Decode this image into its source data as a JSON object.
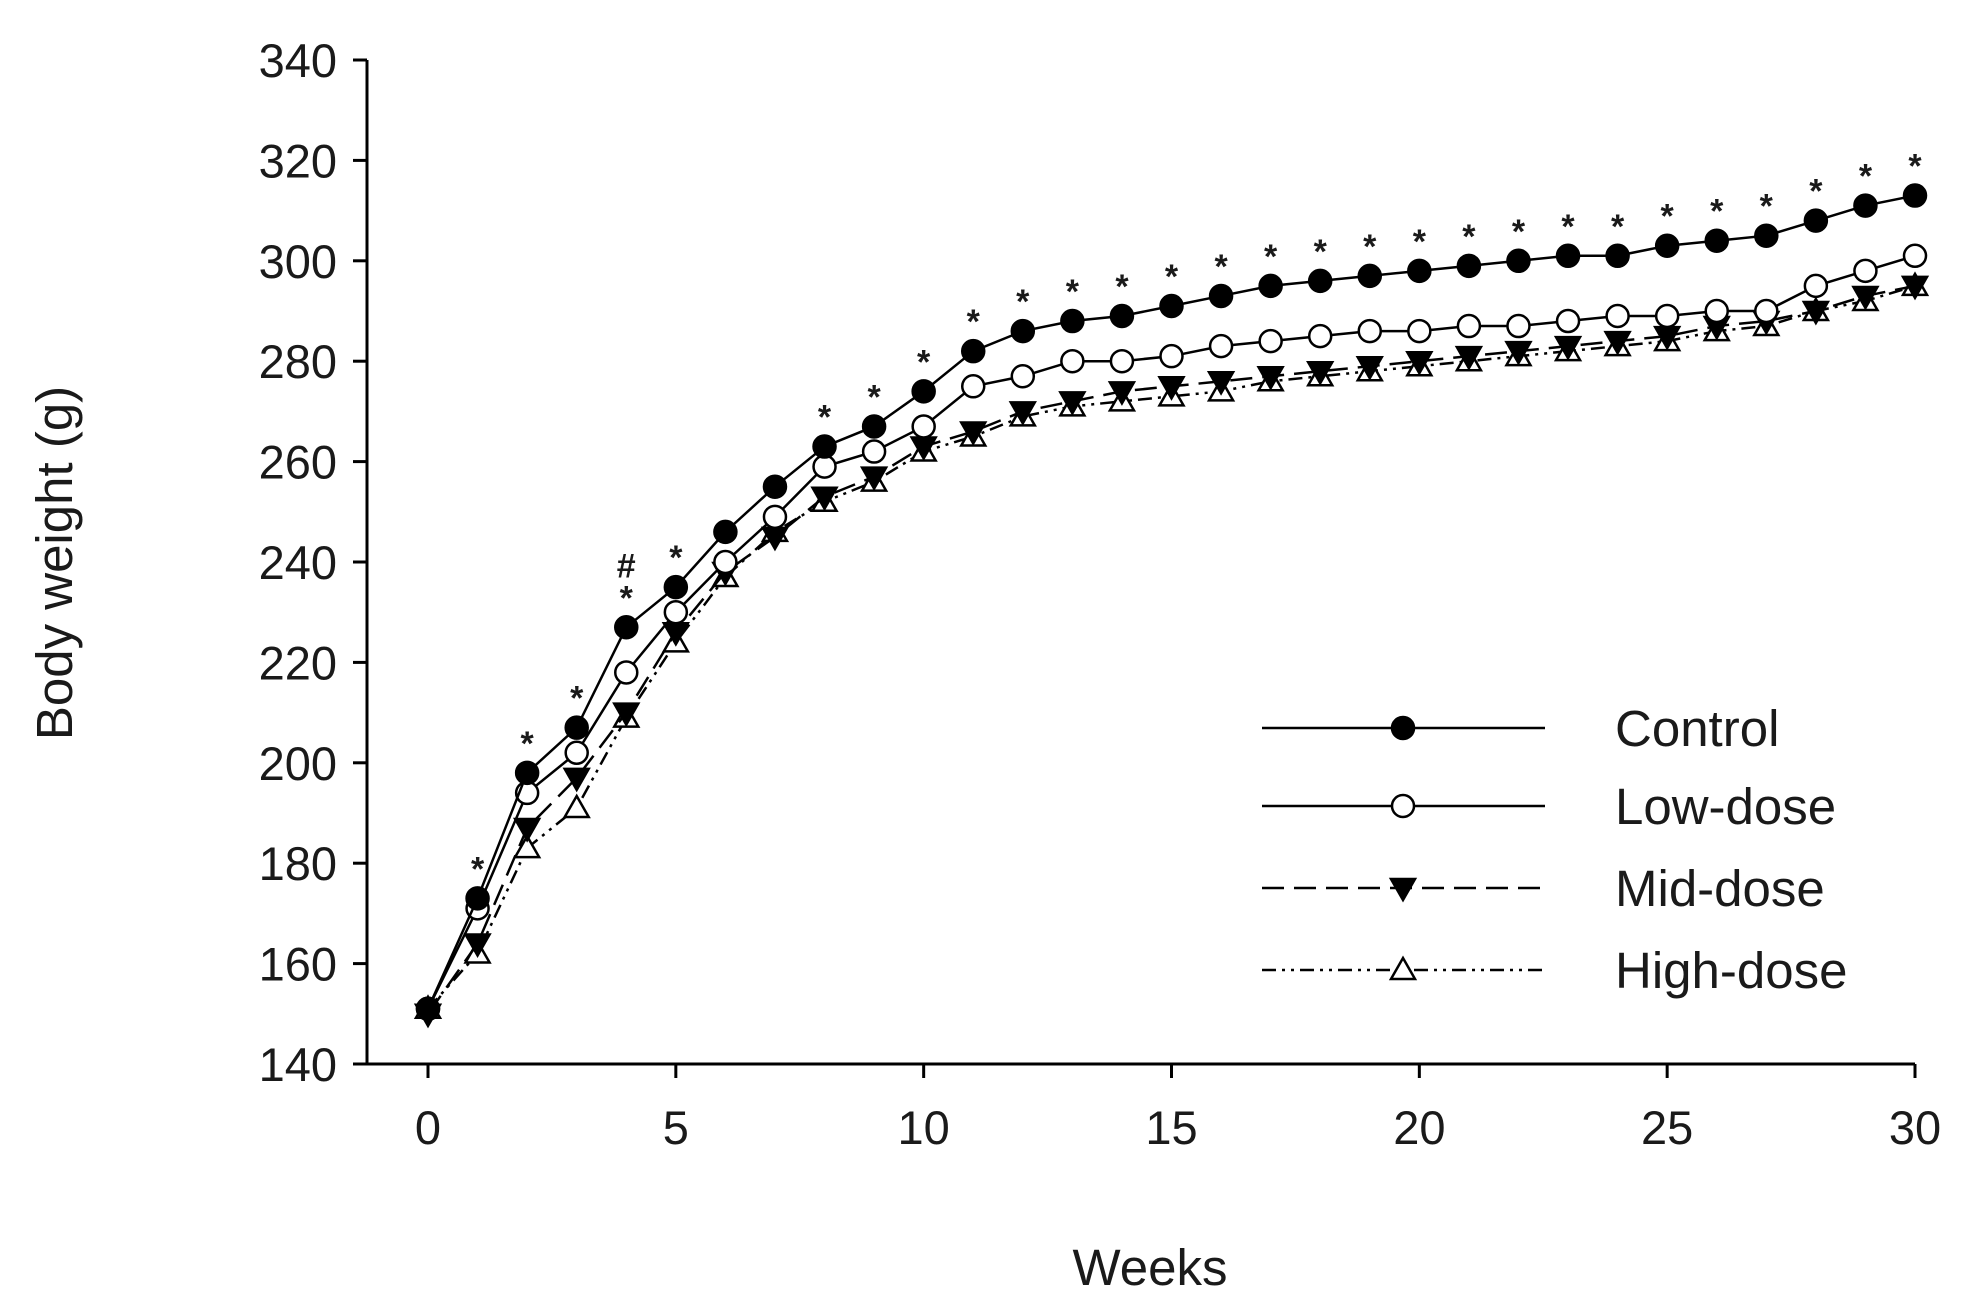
{
  "chart_data": {
    "type": "line",
    "title": "",
    "xlabel": "Weeks",
    "ylabel": "Body weight (g)",
    "xlim": [
      0,
      30
    ],
    "ylim": [
      140,
      340
    ],
    "xticks": [
      0,
      5,
      10,
      15,
      20,
      25,
      30
    ],
    "yticks": [
      140,
      160,
      180,
      200,
      220,
      240,
      260,
      280,
      300,
      320,
      340
    ],
    "grid": false,
    "legend_position": "lower-right",
    "x": [
      0,
      1,
      2,
      3,
      4,
      5,
      6,
      7,
      8,
      9,
      10,
      11,
      12,
      13,
      14,
      15,
      16,
      17,
      18,
      19,
      20,
      21,
      22,
      23,
      24,
      25,
      26,
      27,
      28,
      29,
      30
    ],
    "series": [
      {
        "name": "Control",
        "marker": "filled-circle",
        "line_style": "solid",
        "values": [
          151,
          173,
          198,
          207,
          227,
          235,
          246,
          255,
          263,
          267,
          274,
          282,
          286,
          288,
          289,
          291,
          293,
          295,
          296,
          297,
          298,
          299,
          300,
          301,
          301,
          303,
          304,
          305,
          308,
          311,
          313
        ]
      },
      {
        "name": "Low-dose",
        "marker": "open-circle",
        "line_style": "solid",
        "values": [
          151,
          171,
          194,
          202,
          218,
          230,
          240,
          249,
          259,
          262,
          267,
          275,
          277,
          280,
          280,
          281,
          283,
          284,
          285,
          286,
          286,
          287,
          287,
          288,
          289,
          289,
          290,
          290,
          295,
          298,
          301
        ]
      },
      {
        "name": "Mid-dose",
        "marker": "filled-triangle-down",
        "line_style": "dashed",
        "values": [
          150,
          164,
          187,
          197,
          210,
          226,
          238,
          245,
          253,
          257,
          263,
          266,
          270,
          272,
          274,
          275,
          276,
          277,
          278,
          279,
          280,
          281,
          282,
          283,
          284,
          285,
          287,
          288,
          290,
          293,
          295
        ]
      },
      {
        "name": "High-dose",
        "marker": "open-triangle-up",
        "line_style": "dash-dot-dot",
        "values": [
          151,
          162,
          183,
          191,
          209,
          224,
          237,
          246,
          252,
          256,
          262,
          265,
          269,
          271,
          272,
          273,
          274,
          276,
          277,
          278,
          279,
          280,
          281,
          282,
          283,
          284,
          286,
          287,
          290,
          292,
          295
        ]
      }
    ],
    "annotations": [
      {
        "x": 1,
        "text": "*"
      },
      {
        "x": 2,
        "text": "*"
      },
      {
        "x": 3,
        "text": "*"
      },
      {
        "x": 4,
        "text": "*"
      },
      {
        "x": 4,
        "text": "#",
        "stack": 1
      },
      {
        "x": 5,
        "text": "*"
      },
      {
        "x": 8,
        "text": "*"
      },
      {
        "x": 9,
        "text": "*"
      },
      {
        "x": 10,
        "text": "*"
      },
      {
        "x": 11,
        "text": "*"
      },
      {
        "x": 12,
        "text": "*"
      },
      {
        "x": 13,
        "text": "*"
      },
      {
        "x": 14,
        "text": "*"
      },
      {
        "x": 15,
        "text": "*"
      },
      {
        "x": 16,
        "text": "*"
      },
      {
        "x": 17,
        "text": "*"
      },
      {
        "x": 18,
        "text": "*"
      },
      {
        "x": 19,
        "text": "*"
      },
      {
        "x": 20,
        "text": "*"
      },
      {
        "x": 21,
        "text": "*"
      },
      {
        "x": 22,
        "text": "*"
      },
      {
        "x": 23,
        "text": "*"
      },
      {
        "x": 24,
        "text": "*"
      },
      {
        "x": 25,
        "text": "*"
      },
      {
        "x": 26,
        "text": "*"
      },
      {
        "x": 27,
        "text": "*"
      },
      {
        "x": 28,
        "text": "*"
      },
      {
        "x": 29,
        "text": "*"
      },
      {
        "x": 30,
        "text": "*"
      }
    ]
  }
}
